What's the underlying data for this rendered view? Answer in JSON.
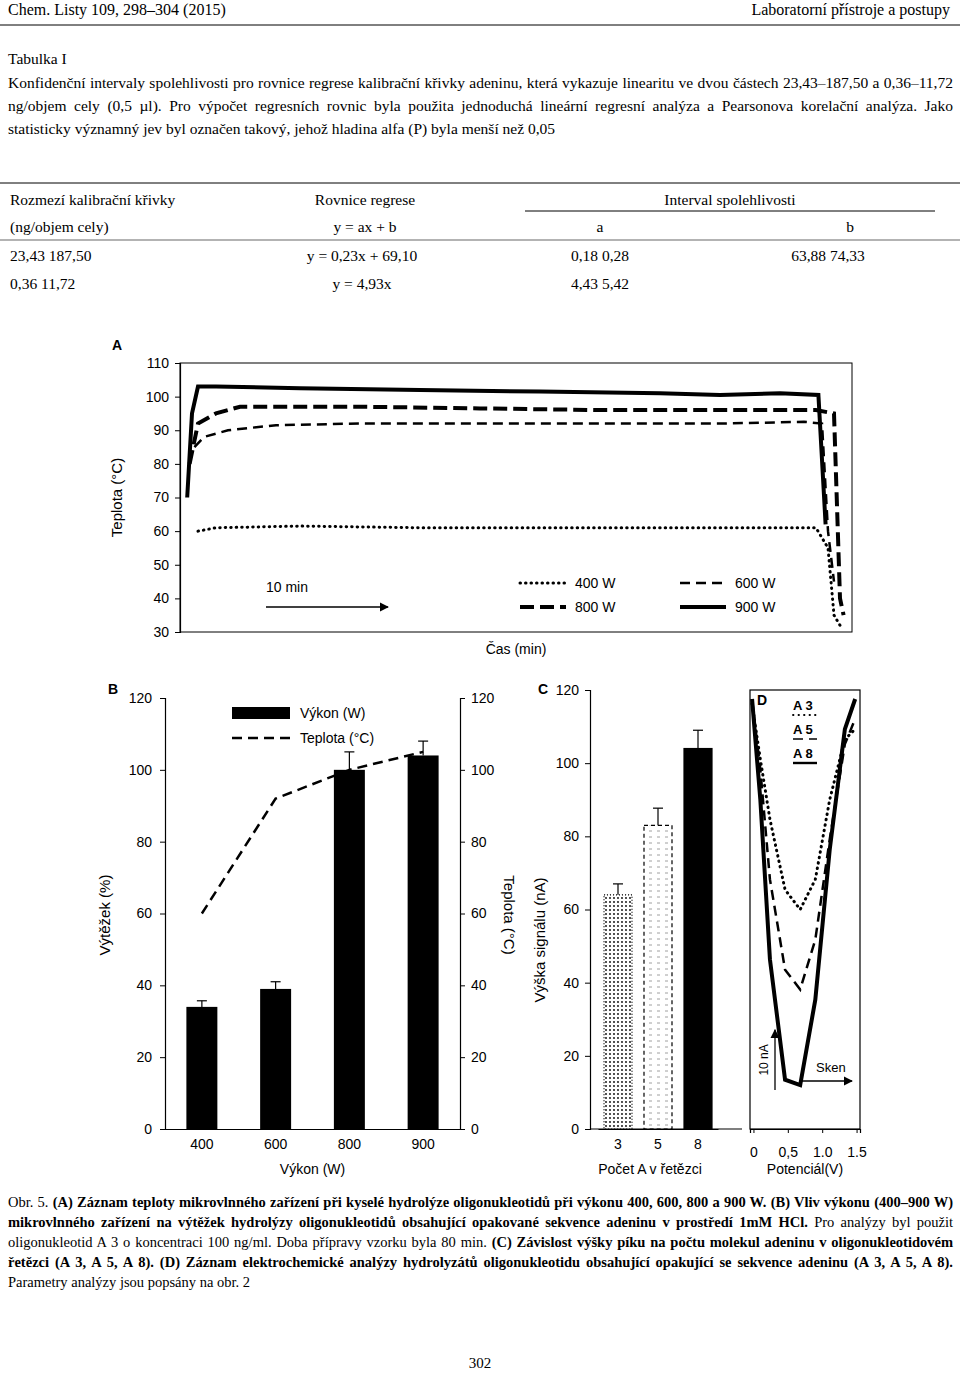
{
  "header": {
    "left": "Chem. Listy 109, 298–304 (2015)",
    "right": "Laboratorní přístroje a postupy"
  },
  "table": {
    "title": "Tabulka I",
    "caption": "Konfidenční intervaly spolehlivosti pro rovnice regrese kalibrační křivky adeninu, která vykazuje linearitu ve dvou částech 23,43–187,50 a 0,36–11,72 ng/objem cely (0,5 µl). Pro výpočet regresních rovnic byla použita jednoduchá lineární regresní analýza a Pearsonova korelační analýza. Jako statisticky významný jev byl označen takový, jehož hladina alfa (P) byla menší než 0,05",
    "columns": [
      "Rozmezí kalibrační křivky",
      "Rovnice regrese",
      "Interval spolehlivosti"
    ],
    "subcolumns": [
      "(ng/objem cely)",
      "y = ax + b",
      "a",
      "b"
    ],
    "rows": [
      [
        "23,43 187,50",
        "y = 0,23x + 69,10",
        "0,18 0,28",
        "63,88 74,33"
      ],
      [
        "0,36 11,72",
        "y = 4,93x",
        "4,43 5,42"
      ]
    ]
  },
  "chart_data": [
    {
      "type": "line",
      "title": "A",
      "x_label": "Čas (min)",
      "y_label": "Teplota (°C)",
      "annotation": "10 min",
      "xlim": [
        0,
        56
      ],
      "ylim": [
        30,
        110
      ],
      "yticks": [
        30,
        40,
        50,
        60,
        70,
        80,
        90,
        100,
        110
      ],
      "tick_labels": "y",
      "legend": "lower right",
      "series": [
        {
          "name": "400 W",
          "color": "#000000",
          "line_style": "dotted",
          "x": [
            1.5,
            3,
            10,
            20,
            30,
            40,
            50,
            53,
            54,
            54.5,
            55
          ],
          "values": [
            60,
            61,
            61.5,
            61,
            61,
            61,
            61,
            61,
            55,
            35,
            32
          ]
        },
        {
          "name": "600 W",
          "color": "#000000",
          "line_style": "dashed",
          "x": [
            1.2,
            2,
            4,
            8,
            15,
            25,
            35,
            45,
            52,
            53.5,
            54,
            54.5
          ],
          "values": [
            85,
            88,
            90,
            91.5,
            92,
            92,
            92,
            92,
            92.5,
            92,
            60,
            45
          ]
        },
        {
          "name": "800 W",
          "color": "#000000",
          "line_style": "longdash",
          "x": [
            0.8,
            1.5,
            3,
            5,
            15,
            25,
            35,
            45,
            53,
            54.5,
            55,
            55.3
          ],
          "values": [
            80,
            92,
            95,
            97,
            97,
            96.5,
            96,
            96,
            96,
            95,
            40,
            35
          ]
        },
        {
          "name": "900 W",
          "color": "#000000",
          "line_style": "solid",
          "x": [
            0.6,
            1,
            1.5,
            3,
            10,
            20,
            30,
            40,
            45,
            50,
            53.2,
            53.8
          ],
          "values": [
            70,
            95,
            103,
            103,
            102.5,
            102,
            101.5,
            101,
            100.5,
            101,
            100.5,
            62
          ]
        }
      ]
    },
    {
      "type": "bar",
      "title": "B",
      "x_label": "Výkon (W)",
      "y_label": "Výtěžek (%)",
      "y2_label": "Teplota (°C)",
      "categories": [
        "400",
        "600",
        "800",
        "900"
      ],
      "ylim": [
        0,
        120
      ],
      "yticks": [
        0,
        20,
        40,
        60,
        80,
        100,
        120
      ],
      "y2lim": [
        0,
        120
      ],
      "y2ticks": [
        0,
        20,
        40,
        60,
        80,
        100,
        120
      ],
      "legend": "upper left",
      "series": [
        {
          "name": "Výkon (W)",
          "type": "bar",
          "color": "#000000",
          "values": [
            34,
            39,
            100,
            104
          ],
          "errors": [
            1.7,
            2,
            5,
            4
          ]
        },
        {
          "name": "Teplota (°C)",
          "type": "line",
          "line_style": "dashed",
          "color": "#000000",
          "axis": "y2",
          "values": [
            60,
            92,
            100,
            105
          ]
        }
      ]
    },
    {
      "type": "bar",
      "title": "C",
      "x_label": "Počet A v řetězci",
      "y_label": "Výška signálu (nA)",
      "categories": [
        "3",
        "5",
        "8"
      ],
      "ylim": [
        0,
        120
      ],
      "yticks": [
        0,
        20,
        40,
        60,
        80,
        100,
        120
      ],
      "color": "#000000",
      "values": [
        64,
        83,
        104
      ],
      "errors": [
        3,
        4.7,
        5
      ]
    },
    {
      "type": "line",
      "title": "D",
      "x_label": "Potenciál(V)",
      "annotation": "Sken",
      "scale_bar": {
        "value": 10,
        "label": "10 nA"
      },
      "xlim": [
        -0.05,
        1.55
      ],
      "xticks": [
        0,
        {
          "value": 0.5,
          "label": "0,5"
        },
        {
          "value": 1,
          "label": "1.0"
        },
        {
          "value": 1.5,
          "label": "1.5"
        }
      ],
      "ylim": [
        0,
        73
      ],
      "tick_labels": "x",
      "legend": "upper center",
      "x": [
        -0.02,
        0.1,
        0.24,
        0.46,
        0.68,
        0.9,
        1.11,
        1.33,
        1.48
      ],
      "series": [
        {
          "name": "A 3",
          "color": "#000000",
          "line_style": "dotted",
          "values": [
            70.7,
            61.5,
            51.5,
            39.8,
            36.5,
            41.5,
            54.8,
            64.8,
            66.5
          ]
        },
        {
          "name": "A 5",
          "color": "#000000",
          "line_style": "dashed",
          "values": [
            71.5,
            59.8,
            41.5,
            26.5,
            23.2,
            31.5,
            48.2,
            64,
            68.2
          ]
        },
        {
          "name": "A 8",
          "color": "#000000",
          "line_style": "solid",
          "values": [
            71.5,
            54.8,
            28.2,
            8.2,
            7.3,
            21.5,
            46.5,
            66.5,
            71.5
          ]
        }
      ]
    }
  ],
  "caption": {
    "label": "Obr. 5.",
    "bold": [
      "(A) Záznam teploty mikrovlnného zařízení při kyselé hydrolýze oligonukleotidů při výkonu 400, 600, 800 a 900 W. (B) Vliv výkonu (400–900 W) mikrovlnného zařízení na výtěžek hydrolýzy oligonukleotidů obsahující opakované sekvence adeninu v prostředí 1mM HCl.",
      "(C) Závislost výšky píku na počtu molekul adeninu v oligonukleotidovém řetězci (A 3, A 5, A 8). (D) Záznam elektrochemické analýzy hydrolyzátů oligonukleotidu obsahující opakující se sekvence adeninu (A 3, A 5, A 8)."
    ],
    "plain": [
      "Pro analýzy byl použit oligonukleotid A 3 o koncentraci 100 ng/ml. Doba přípravy vzorku byla 80 min.",
      "Parametry analýzy jsou popsány na obr. 2"
    ]
  },
  "page_number": "302"
}
